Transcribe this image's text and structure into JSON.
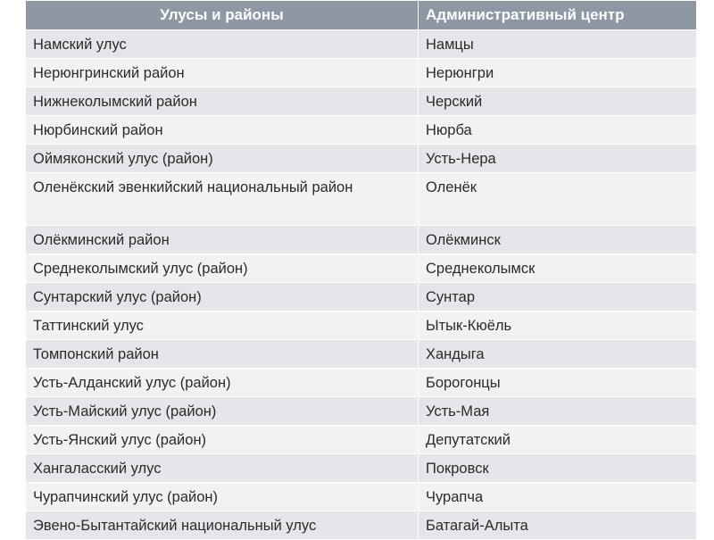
{
  "table": {
    "header": [
      "Улусы и районы",
      "Административный центр"
    ],
    "rows": [
      [
        "Намский улус",
        "Намцы"
      ],
      [
        "Нерюнгринский район",
        "Нерюнгри"
      ],
      [
        "Нижнеколымский район",
        "Черский"
      ],
      [
        "Нюрбинский район",
        "Нюрба"
      ],
      [
        "Оймяконский улус (район)",
        "Усть-Нера"
      ],
      [
        "Оленёкский эвенкийский национальный район",
        "Оленёк"
      ],
      [
        "Олёкминский район",
        "Олёкминск"
      ],
      [
        "Среднеколымский улус (район)",
        "Среднеколымск"
      ],
      [
        "Сунтарский улус (район)",
        "Сунтар"
      ],
      [
        "Таттинский улус",
        "Ытык-Кюёль"
      ],
      [
        "Томпонский район",
        "Хандыга"
      ],
      [
        "Усть-Алданский улус (район)",
        "Борогонцы"
      ],
      [
        "Усть-Майский улус (район)",
        "Усть-Мая"
      ],
      [
        "Усть-Янский улус (район)",
        "Депутатский"
      ],
      [
        "Хангаласский улус",
        "Покровск"
      ],
      [
        "Чурапчинский улус (район)",
        "Чурапча"
      ],
      [
        "Эвено-Бытантайский национальный улус",
        "Батагай-Алыта"
      ]
    ]
  }
}
